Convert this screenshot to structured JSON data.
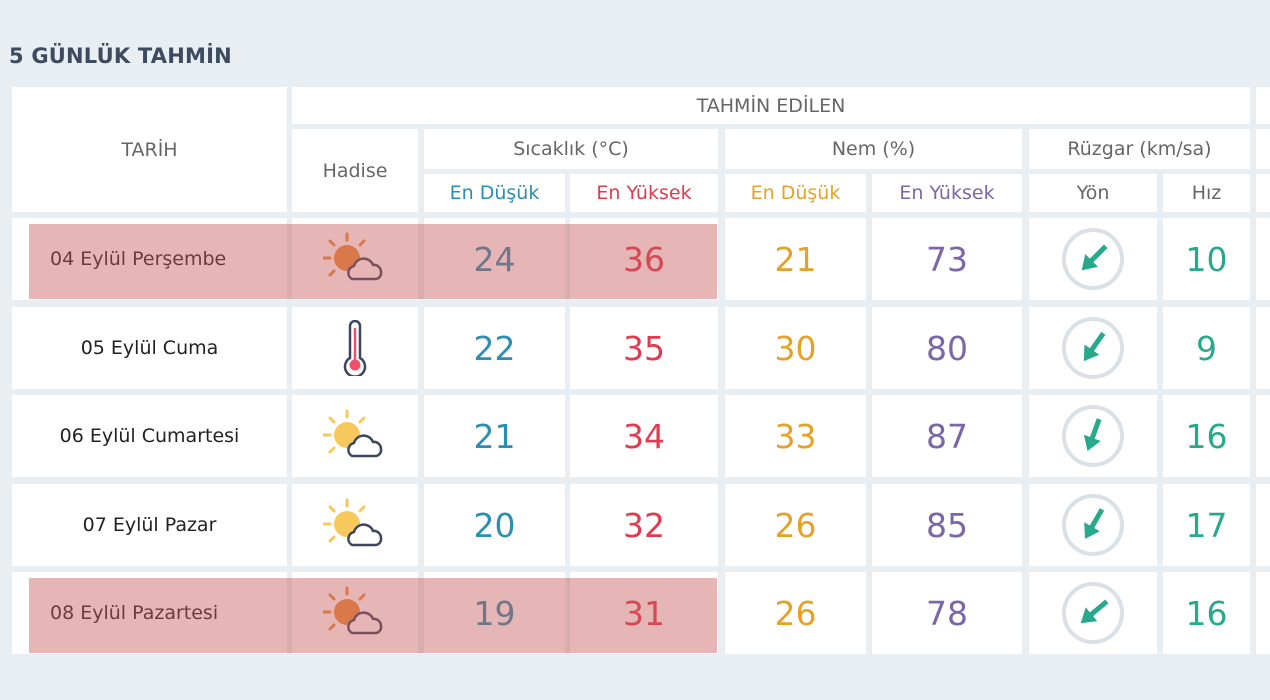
{
  "title": "5 GÜNLÜK TAHMİN",
  "header": {
    "tarih": "TARİH",
    "tahmin_edilen": "TAHMİN EDİLEN",
    "hadise": "Hadise",
    "sicaklik": "Sıcaklık (°C)",
    "nem": "Nem (%)",
    "ruzgar": "Rüzgar (km/sa)",
    "en_dusuk": "En Düşük",
    "en_yuksek": "En Yüksek",
    "yon": "Yön",
    "hiz": "Hız"
  },
  "colors": {
    "temp_low": "#2a8fb2",
    "temp_high": "#e23a4e",
    "hum_low": "#e6a127",
    "hum_high": "#7a66a8",
    "wind": "#27a98c",
    "highlight": "#e6b4b4"
  },
  "rows": [
    {
      "date": "04 Eylül Perşembe",
      "icon": "partly-cloudy-icon",
      "temp_low": "24",
      "temp_high": "36",
      "hum_low": "21",
      "hum_high": "73",
      "wind_direction_deg": 225,
      "wind_speed": "10",
      "highlighted": true
    },
    {
      "date": "05 Eylül Cuma",
      "icon": "thermometer-hot-icon",
      "temp_low": "22",
      "temp_high": "35",
      "hum_low": "30",
      "hum_high": "80",
      "wind_direction_deg": 215,
      "wind_speed": "9",
      "highlighted": false
    },
    {
      "date": "06 Eylül Cumartesi",
      "icon": "partly-cloudy-icon",
      "temp_low": "21",
      "temp_high": "34",
      "hum_low": "33",
      "hum_high": "87",
      "wind_direction_deg": 200,
      "wind_speed": "16",
      "highlighted": false
    },
    {
      "date": "07 Eylül Pazar",
      "icon": "partly-cloudy-icon",
      "temp_low": "20",
      "temp_high": "32",
      "hum_low": "26",
      "hum_high": "85",
      "wind_direction_deg": 210,
      "wind_speed": "17",
      "highlighted": false
    },
    {
      "date": "08 Eylül Pazartesi",
      "icon": "partly-cloudy-icon",
      "temp_low": "19",
      "temp_high": "31",
      "hum_low": "26",
      "hum_high": "78",
      "wind_direction_deg": 230,
      "wind_speed": "16",
      "highlighted": true
    }
  ]
}
